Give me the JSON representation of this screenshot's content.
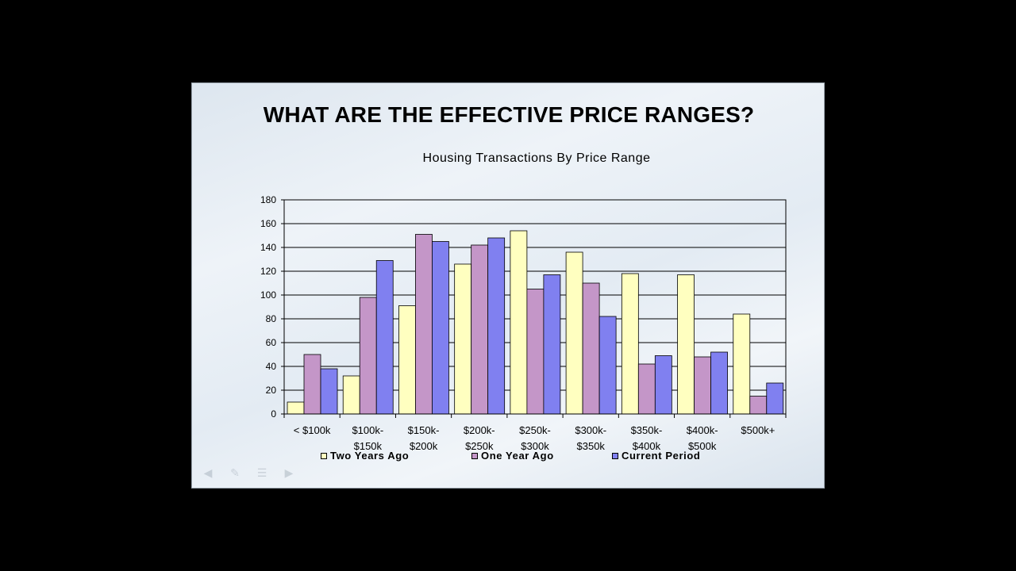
{
  "slide": {
    "title": "WHAT ARE THE EFFECTIVE PRICE RANGES?",
    "nav_icons": [
      "arrow-left-icon",
      "pen-icon",
      "menu-icon",
      "arrow-right-icon"
    ]
  },
  "chart_data": {
    "type": "bar",
    "title": "Housing Transactions By Price Range",
    "xlabel": "",
    "ylabel": "",
    "ylim": [
      0,
      180
    ],
    "yticks": [
      0,
      20,
      40,
      60,
      80,
      100,
      120,
      140,
      160,
      180
    ],
    "grid": true,
    "legend_position": "bottom",
    "categories": [
      [
        "< $100k"
      ],
      [
        "$100k-",
        "$150k"
      ],
      [
        "$150k-",
        "$200k"
      ],
      [
        "$200k-",
        "$250k"
      ],
      [
        "$250k-",
        "$300k"
      ],
      [
        "$300k-",
        "$350k"
      ],
      [
        "$350k-",
        "$400k"
      ],
      [
        "$400k-",
        "$500k"
      ],
      [
        "$500k+"
      ]
    ],
    "series": [
      {
        "name": "Two Years Ago",
        "color": "#FFFFC0",
        "values": [
          10,
          32,
          91,
          126,
          154,
          136,
          118,
          117,
          84
        ]
      },
      {
        "name": "One Year Ago",
        "color": "#C496C8",
        "values": [
          50,
          98,
          151,
          142,
          105,
          110,
          42,
          48,
          15
        ]
      },
      {
        "name": "Current Period",
        "color": "#8080F0",
        "values": [
          38,
          129,
          145,
          148,
          117,
          82,
          49,
          52,
          26
        ]
      }
    ]
  }
}
